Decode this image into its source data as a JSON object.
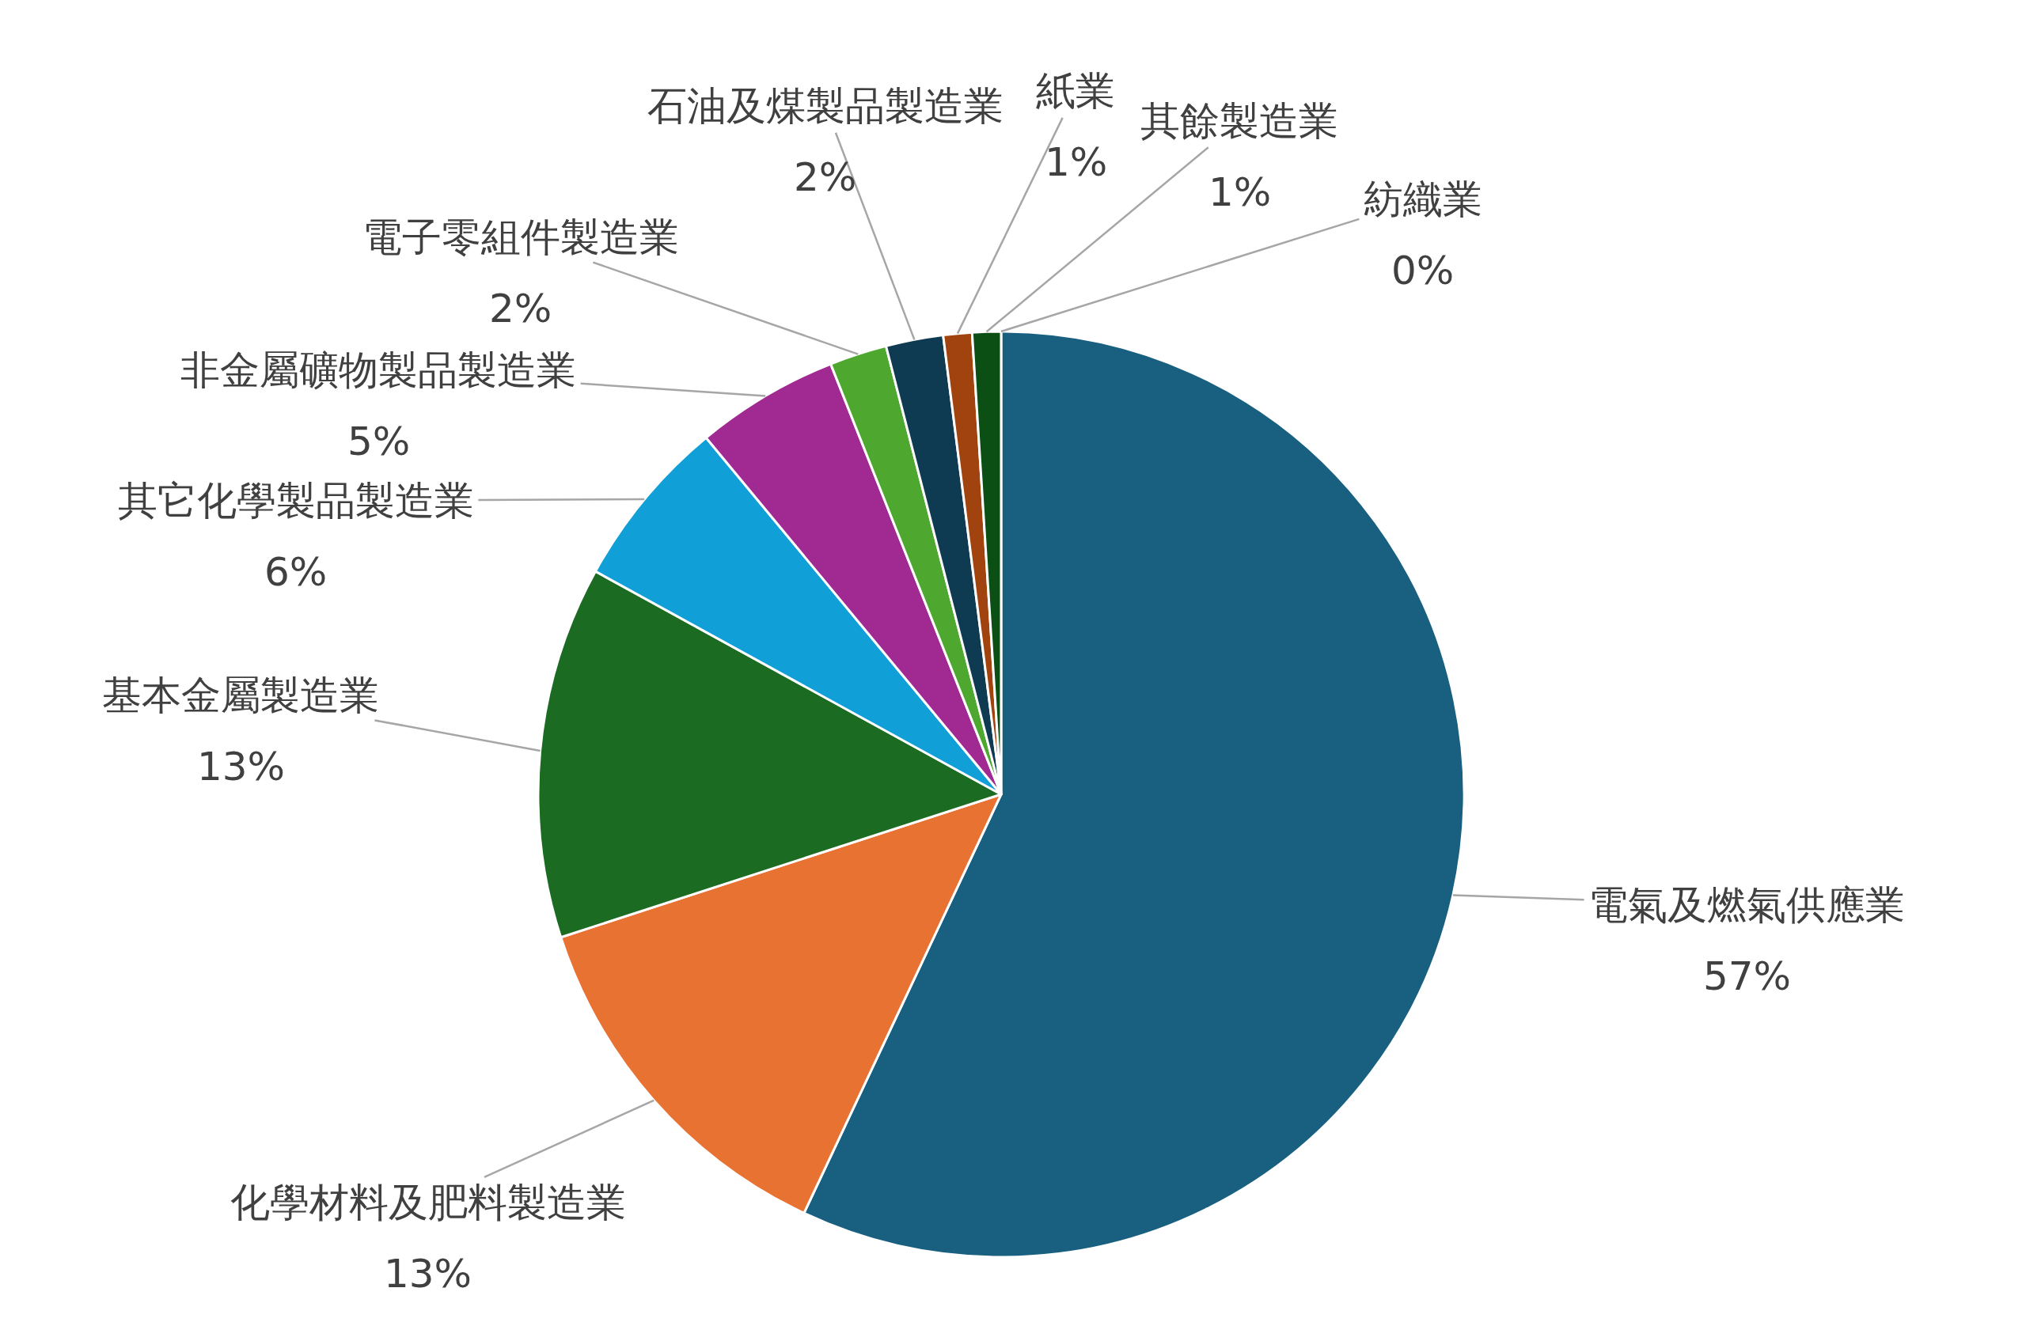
{
  "chart_data": {
    "type": "pie",
    "categories": [
      "電氣及燃氣供應業",
      "化學材料及肥料製造業",
      "基本金屬製造業",
      "其它化學製品製造業",
      "非金屬礦物製品製造業",
      "電子零組件製造業",
      "石油及煤製品製造業",
      "紙業",
      "其餘製造業",
      "紡織業"
    ],
    "values": [
      57,
      13,
      13,
      6,
      5,
      2,
      2,
      1,
      1,
      0
    ],
    "value_labels": [
      "57%",
      "13%",
      "13%",
      "6%",
      "5%",
      "2%",
      "2%",
      "1%",
      "1%",
      "0%"
    ],
    "colors": [
      "#185f80",
      "#e87232",
      "#1c6b23",
      "#119fd8",
      "#a02a92",
      "#4ea72e",
      "#0e3a52",
      "#a0430f",
      "#0b4f14",
      "#1a6690"
    ]
  }
}
